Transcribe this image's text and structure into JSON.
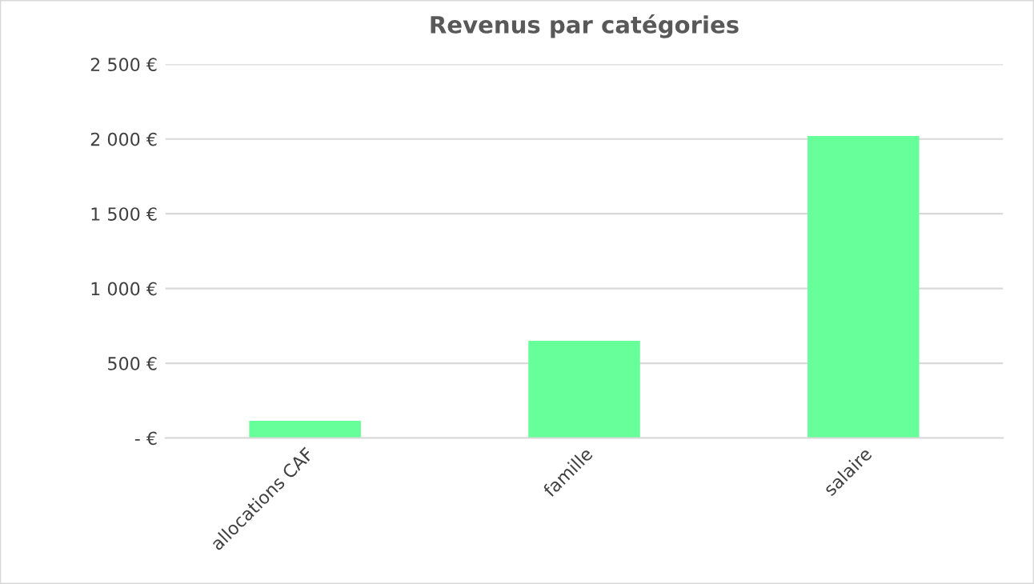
{
  "chart_data": {
    "type": "bar",
    "title": "Revenus par catégories",
    "categories": [
      "allocations CAF",
      "famille",
      "salaire"
    ],
    "values": [
      115,
      650,
      2020
    ],
    "color": "#66ff99",
    "ylim": [
      0,
      2500
    ],
    "yticks": [
      {
        "value": 0,
        "label": "- €"
      },
      {
        "value": 500,
        "label": "500 €"
      },
      {
        "value": 1000,
        "label": "1 000 €"
      },
      {
        "value": 1500,
        "label": "1 500 €"
      },
      {
        "value": 2000,
        "label": "2 000 €"
      },
      {
        "value": 2500,
        "label": "2 500 €"
      }
    ],
    "grid": "y"
  }
}
